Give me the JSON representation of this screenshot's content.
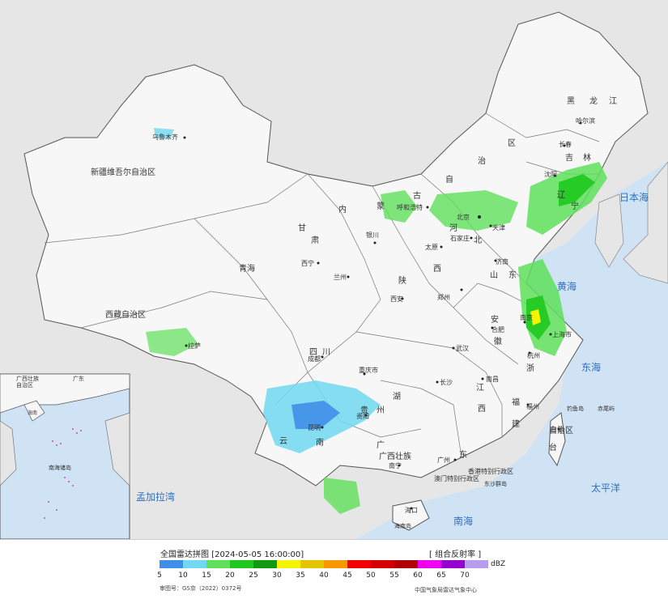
{
  "title": "全国雷达拼图 [2024-05-05 16:00:00]",
  "product": "[ 组合反射率 ]",
  "legend": {
    "unit": "dBZ",
    "ticks": [
      "5",
      "10",
      "15",
      "20",
      "25",
      "30",
      "35",
      "40",
      "45",
      "50",
      "55",
      "60",
      "65",
      "70"
    ],
    "colors": [
      "#3f8fe8",
      "#71d8f0",
      "#5ee05a",
      "#1ec81e",
      "#0f9a10",
      "#f4f400",
      "#e2c400",
      "#f79800",
      "#f00000",
      "#d40000",
      "#b00000",
      "#f000f0",
      "#9400d0",
      "#b89cf0"
    ]
  },
  "approval_number": "审图号：GS京（2022）0372号",
  "producer": "中国气象局雷达气象中心",
  "map_labels": {
    "regions": [
      "新疆维吾尔自治区",
      "西藏自治区",
      "青海",
      "甘",
      "肃",
      "内",
      "蒙",
      "古",
      "自",
      "治",
      "区",
      "黑",
      "龙",
      "江",
      "吉",
      "林",
      "辽",
      "宁",
      "河",
      "北",
      "山",
      "西",
      "东",
      "陕",
      "四",
      "川",
      "贵",
      "州",
      "云",
      "南",
      "湖",
      "江",
      "西",
      "安",
      "徽",
      "浙",
      "福",
      "建",
      "广",
      "东",
      "广西壮族",
      "自治区",
      "台",
      "湾"
    ],
    "cities": [
      "乌鲁木齐",
      "拉萨",
      "西宁",
      "兰州",
      "银川",
      "呼和浩特",
      "北京",
      "天津",
      "石家庄",
      "太原",
      "郑州",
      "西安",
      "成都",
      "重庆市",
      "贵阳",
      "昆明",
      "长沙",
      "武汉",
      "南昌",
      "合肥",
      "南京",
      "上海市",
      "杭州",
      "福州",
      "台北",
      "广州",
      "南宁",
      "海口",
      "哈尔滨",
      "长春",
      "沈阳",
      "济南",
      "香港特别行政区",
      "澳门特别行政区"
    ],
    "seas": [
      "日本海",
      "黄海",
      "东海",
      "太平洋",
      "南海",
      "孟加拉湾"
    ],
    "islands": [
      "钓鱼岛",
      "赤尾屿",
      "东沙群岛",
      "海南岛"
    ]
  },
  "inset_labels": [
    "广西壮族",
    "自治区",
    "广东",
    "海南",
    "南海诸岛"
  ]
}
